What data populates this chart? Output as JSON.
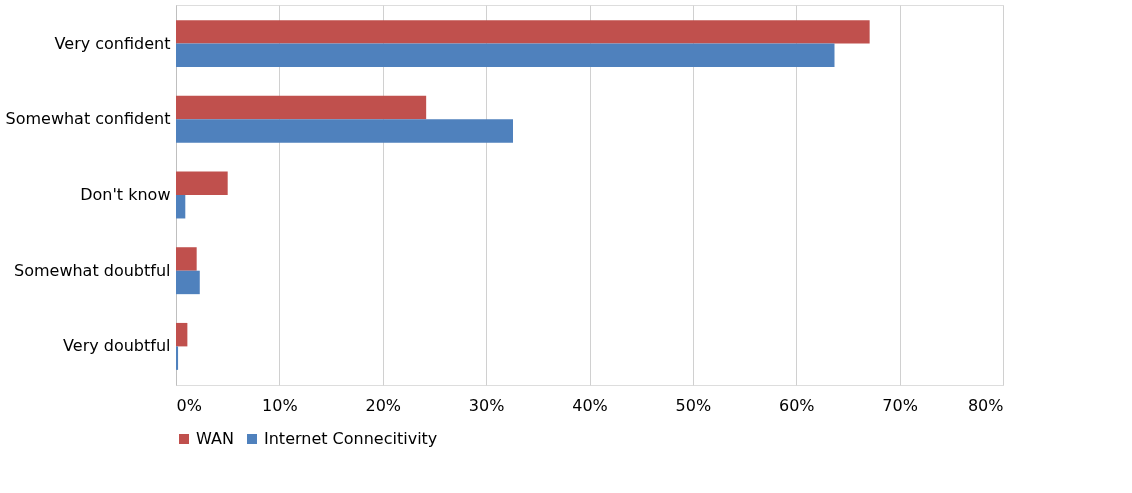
{
  "chart_data": {
    "type": "bar",
    "orientation": "horizontal",
    "categories": [
      "Very confident",
      "Somewhat confident",
      "Don't know",
      "Somewhat doubtful",
      "Very doubtful"
    ],
    "series": [
      {
        "name": "WAN",
        "color": "#c0504d",
        "values": [
          67.1,
          24.2,
          5.0,
          2.0,
          1.1
        ]
      },
      {
        "name": "Internet Connecitivity",
        "color": "#4f81bd",
        "values": [
          63.7,
          32.6,
          0.9,
          2.3,
          0.2
        ]
      }
    ],
    "xlim": [
      0,
      80
    ],
    "xticks": [
      {
        "value": 0,
        "label": "0%"
      },
      {
        "value": 10,
        "label": "10%"
      },
      {
        "value": 20,
        "label": "20%"
      },
      {
        "value": 30,
        "label": "30%"
      },
      {
        "value": 40,
        "label": "40%"
      },
      {
        "value": 50,
        "label": "50%"
      },
      {
        "value": 60,
        "label": "60%"
      },
      {
        "value": 70,
        "label": "70%"
      },
      {
        "value": 80,
        "label": "80%"
      }
    ],
    "grid": "x",
    "legend": "bottom"
  }
}
